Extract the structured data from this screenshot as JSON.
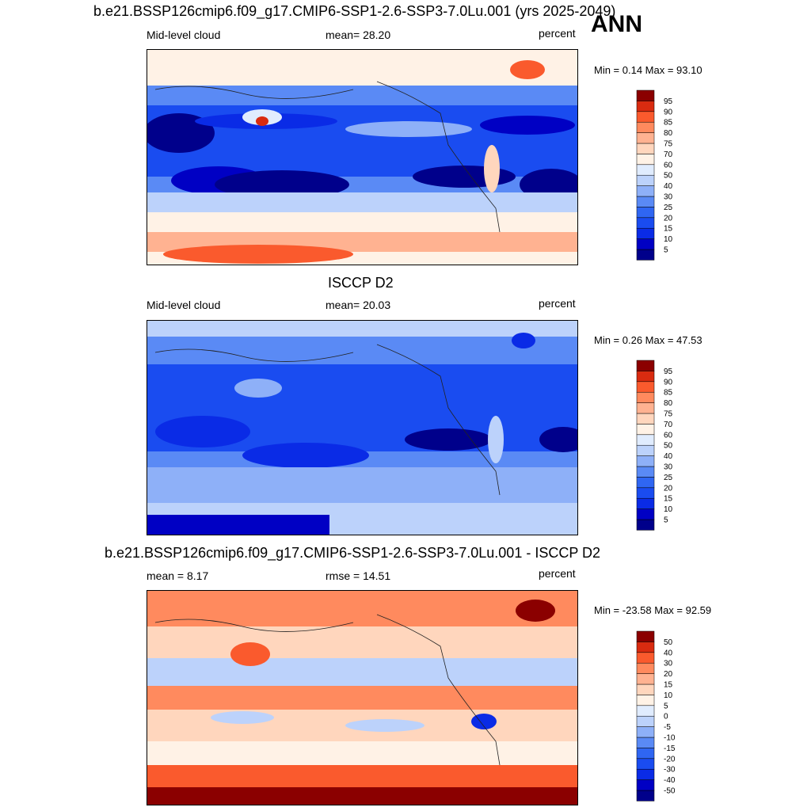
{
  "header": {
    "main_title": "b.e21.BSSP126cmip6.f09_g17.CMIP6-SSP1-2.6-SSP3-7.0Lu.001 (yrs 2025-2049)",
    "season": "ANN"
  },
  "panels": [
    {
      "title": "",
      "left_label": "Mid-level cloud",
      "center_label": "mean=  28.20",
      "right_label": "percent",
      "minmax": "Min =   0.14 Max =  93.10"
    },
    {
      "title": "ISCCP D2",
      "left_label": "Mid-level cloud",
      "center_label": "mean=  20.03",
      "right_label": "percent",
      "minmax": "Min =   0.26 Max =  47.53"
    },
    {
      "title": "b.e21.BSSP126cmip6.f09_g17.CMIP6-SSP1-2.6-SSP3-7.0Lu.001 - ISCCP D2",
      "left_label": "mean =   8.17",
      "center_label": "rmse =  14.51",
      "right_label": "percent",
      "minmax": "Min = -23.58 Max =  92.59"
    }
  ],
  "chart_data": [
    {
      "type": "heatmap",
      "title": "Mid-level cloud",
      "units": "percent",
      "mean": 28.2,
      "min": 0.14,
      "max": 93.1,
      "colorbar_levels": [
        5,
        10,
        15,
        20,
        25,
        30,
        40,
        50,
        60,
        70,
        75,
        80,
        85,
        90,
        95
      ],
      "colors": [
        "#00008b",
        "#0000c4",
        "#0a2be6",
        "#1a4cf0",
        "#2f66f2",
        "#5a8af5",
        "#8eb0f8",
        "#bcd2fb",
        "#e0ecfe",
        "#fff2e6",
        "#ffd6bd",
        "#ffb291",
        "#ff8a5e",
        "#fa5a2d",
        "#d92b10",
        "#8b0000"
      ]
    },
    {
      "type": "heatmap",
      "title": "ISCCP D2",
      "units": "percent",
      "mean": 20.03,
      "min": 0.26,
      "max": 47.53,
      "colorbar_levels": [
        5,
        10,
        15,
        20,
        25,
        30,
        40,
        50,
        60,
        70,
        75,
        80,
        85,
        90,
        95
      ],
      "colors": [
        "#00008b",
        "#0000c4",
        "#0a2be6",
        "#1a4cf0",
        "#2f66f2",
        "#5a8af5",
        "#8eb0f8",
        "#bcd2fb",
        "#e0ecfe",
        "#fff2e6",
        "#ffd6bd",
        "#ffb291",
        "#ff8a5e",
        "#fa5a2d",
        "#d92b10",
        "#8b0000"
      ]
    },
    {
      "type": "heatmap",
      "title": "b.e21.BSSP126cmip6.f09_g17.CMIP6-SSP1-2.6-SSP3-7.0Lu.001 - ISCCP D2",
      "units": "percent",
      "mean": 8.17,
      "rmse": 14.51,
      "min": -23.58,
      "max": 92.59,
      "colorbar_levels": [
        -50,
        -40,
        -30,
        -20,
        -15,
        -10,
        -5,
        0,
        5,
        10,
        15,
        20,
        30,
        40,
        50
      ],
      "colors": [
        "#00008b",
        "#0000c4",
        "#0a2be6",
        "#1a4cf0",
        "#2f66f2",
        "#5a8af5",
        "#8eb0f8",
        "#bcd2fb",
        "#e0ecfe",
        "#fff2e6",
        "#ffd6bd",
        "#ffb291",
        "#ff8a5e",
        "#fa5a2d",
        "#d92b10",
        "#8b0000"
      ]
    }
  ]
}
